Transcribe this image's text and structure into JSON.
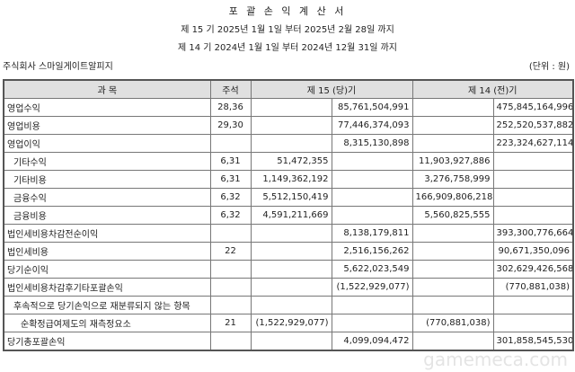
{
  "header": {
    "title": "포 괄 손 익 계 산 서",
    "period_current": "제 15 기   2025년 1월 1일 부터 2025년 2월 28일 까지",
    "period_prior": "제 14 기   2024년 1월 1일 부터 2024년 12월 31일 까지",
    "company": "주식회사 스마일게이트알피지",
    "unit": "(단위 : 원)"
  },
  "table": {
    "columns": [
      "과        목",
      "주석",
      "제 15 (당)기",
      "제 14 (전)기"
    ],
    "rows": [
      {
        "item": "영업수익",
        "note": "28,36",
        "c1": "",
        "c2": "85,761,504,991",
        "p1": "",
        "p2": "475,845,164,996",
        "indent": 0
      },
      {
        "item": "영업비용",
        "note": "29,30",
        "c1": "",
        "c2": "77,446,374,093",
        "p1": "",
        "p2": "252,520,537,882",
        "indent": 0
      },
      {
        "item": "영업이익",
        "note": "",
        "c1": "",
        "c2": "8,315,130,898",
        "p1": "",
        "p2": "223,324,627,114",
        "indent": 0
      },
      {
        "item": "기타수익",
        "note": "6,31",
        "c1": "51,472,355",
        "c2": "",
        "p1": "11,903,927,886",
        "p2": "",
        "indent": 1
      },
      {
        "item": "기타비용",
        "note": "6,31",
        "c1": "1,149,362,192",
        "c2": "",
        "p1": "3,276,758,999",
        "p2": "",
        "indent": 1
      },
      {
        "item": "금융수익",
        "note": "6,32",
        "c1": "5,512,150,419",
        "c2": "",
        "p1": "166,909,806,218",
        "p2": "",
        "indent": 1
      },
      {
        "item": "금융비용",
        "note": "6,32",
        "c1": "4,591,211,669",
        "c2": "",
        "p1": "5,560,825,555",
        "p2": "",
        "indent": 1
      },
      {
        "item": "법인세비용차감전순이익",
        "note": "",
        "c1": "",
        "c2": "8,138,179,811",
        "p1": "",
        "p2": "393,300,776,664",
        "indent": 0
      },
      {
        "item": "법인세비용",
        "note": "22",
        "c1": "",
        "c2": "2,516,156,262",
        "p1": "",
        "p2": "90,671,350,096",
        "indent": 0
      },
      {
        "item": "당기순이익",
        "note": "",
        "c1": "",
        "c2": "5,622,023,549",
        "p1": "",
        "p2": "302,629,426,568",
        "indent": 0
      },
      {
        "item": "법인세비용차감후기타포괄손익",
        "note": "",
        "c1": "",
        "c2": "(1,522,929,077)",
        "p1": "",
        "p2": "(770,881,038)",
        "indent": 0
      },
      {
        "item": "후속적으로 당기손익으로 재분류되지 않는 항목",
        "note": "",
        "c1": "",
        "c2": "",
        "p1": "",
        "p2": "",
        "indent": 1
      },
      {
        "item": "순확정급여제도의 재측정요소",
        "note": "21",
        "c1": "(1,522,929,077)",
        "c2": "",
        "p1": "(770,881,038)",
        "p2": "",
        "indent": 2
      },
      {
        "item": "당기총포괄손익",
        "note": "",
        "c1": "",
        "c2": "4,099,094,472",
        "p1": "",
        "p2": "301,858,545,530",
        "indent": 0
      }
    ]
  },
  "watermark": "gamemeca.com"
}
